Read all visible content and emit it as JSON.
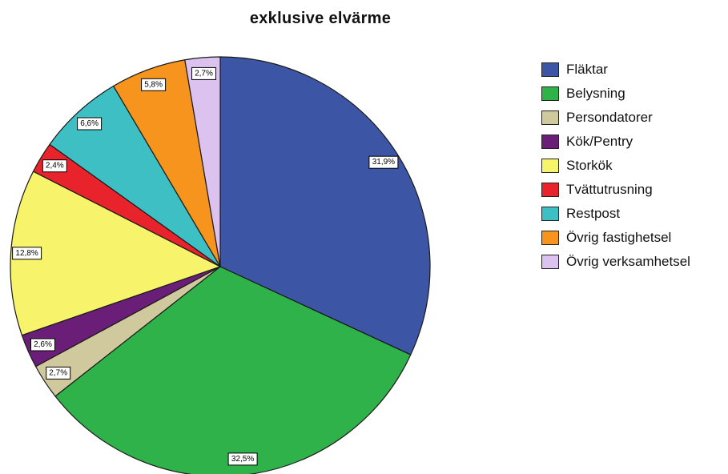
{
  "chart_data": {
    "type": "pie",
    "title": "exklusive elvärme",
    "start_angle_deg": 0,
    "direction": "clockwise",
    "slices": [
      {
        "label": "Fläktar",
        "value": 31.9,
        "display": "31,9%",
        "color": "#3c55a5"
      },
      {
        "label": "Belysning",
        "value": 32.5,
        "display": "32,5%",
        "color": "#2fb24a"
      },
      {
        "label": "Persondatorer",
        "value": 2.7,
        "display": "2,7%",
        "color": "#d1c99e"
      },
      {
        "label": "Kök/Pentry",
        "value": 2.6,
        "display": "2,6%",
        "color": "#6b1e78"
      },
      {
        "label": "Storkök",
        "value": 12.8,
        "display": "12,8%",
        "color": "#f7f36a"
      },
      {
        "label": "Tvättutrusning",
        "value": 2.4,
        "display": "2,4%",
        "color": "#e8232c"
      },
      {
        "label": "Restpost",
        "value": 6.6,
        "display": "6,6%",
        "color": "#3ebfc3"
      },
      {
        "label": "Övrig fastighetsel",
        "value": 5.8,
        "display": "5,8%",
        "color": "#f7941d"
      },
      {
        "label": "Övrig verksamhetsel",
        "value": 2.7,
        "display": "2,7%",
        "color": "#dcc3ef"
      }
    ],
    "legend_position": "right"
  }
}
